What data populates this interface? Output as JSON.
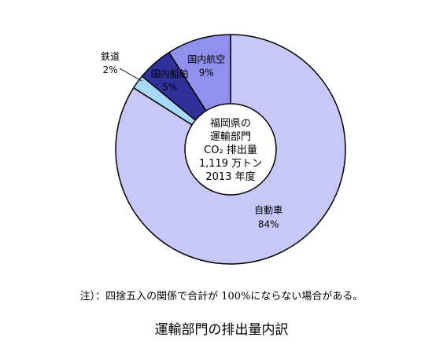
{
  "chart_data": {
    "type": "pie",
    "style": "donut",
    "categories": [
      "自動車",
      "鉄道",
      "国内船舶",
      "国内航空"
    ],
    "values": [
      84,
      2,
      5,
      9
    ],
    "value_labels": [
      "84%",
      "2%",
      "5%",
      "9%"
    ],
    "colors": [
      "#c8c8f8",
      "#a8d8f8",
      "#30309a",
      "#9090ee"
    ],
    "center_lines": [
      "福岡県の",
      "運輸部門",
      "CO₂ 排出量",
      "1,119 万トン",
      "2013 年度"
    ]
  },
  "note": "注）：四捨五入の関係で合計が 100%にならない場合がある。",
  "title": "運輸部門の排出量内訳"
}
